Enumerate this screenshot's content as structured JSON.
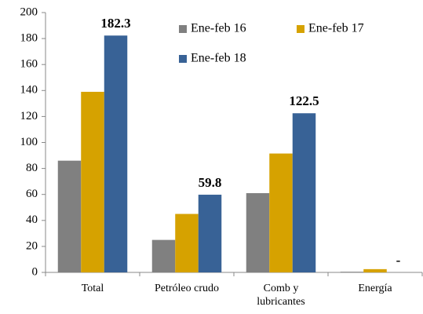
{
  "chart_data": {
    "type": "bar",
    "categories": [
      "Total",
      "Petróleo crudo",
      "Comb y lubricantes",
      "Energía"
    ],
    "series": [
      {
        "name": "Ene-feb 16",
        "color": "#808080",
        "values": [
          86,
          25,
          61,
          0.5
        ]
      },
      {
        "name": "Ene-feb 17",
        "color": "#d6a200",
        "values": [
          139,
          45,
          91.5,
          2.5
        ]
      },
      {
        "name": "Ene-feb 18",
        "color": "#386296",
        "values": [
          182.3,
          59.8,
          122.5,
          null
        ],
        "value_labels": [
          "182.3",
          "59.8",
          "122.5",
          "-"
        ]
      }
    ],
    "ylim": [
      0,
      200
    ],
    "yticks": [
      0,
      20,
      40,
      60,
      80,
      100,
      120,
      140,
      160,
      180,
      200
    ],
    "grid": false,
    "legend": "upper right"
  }
}
